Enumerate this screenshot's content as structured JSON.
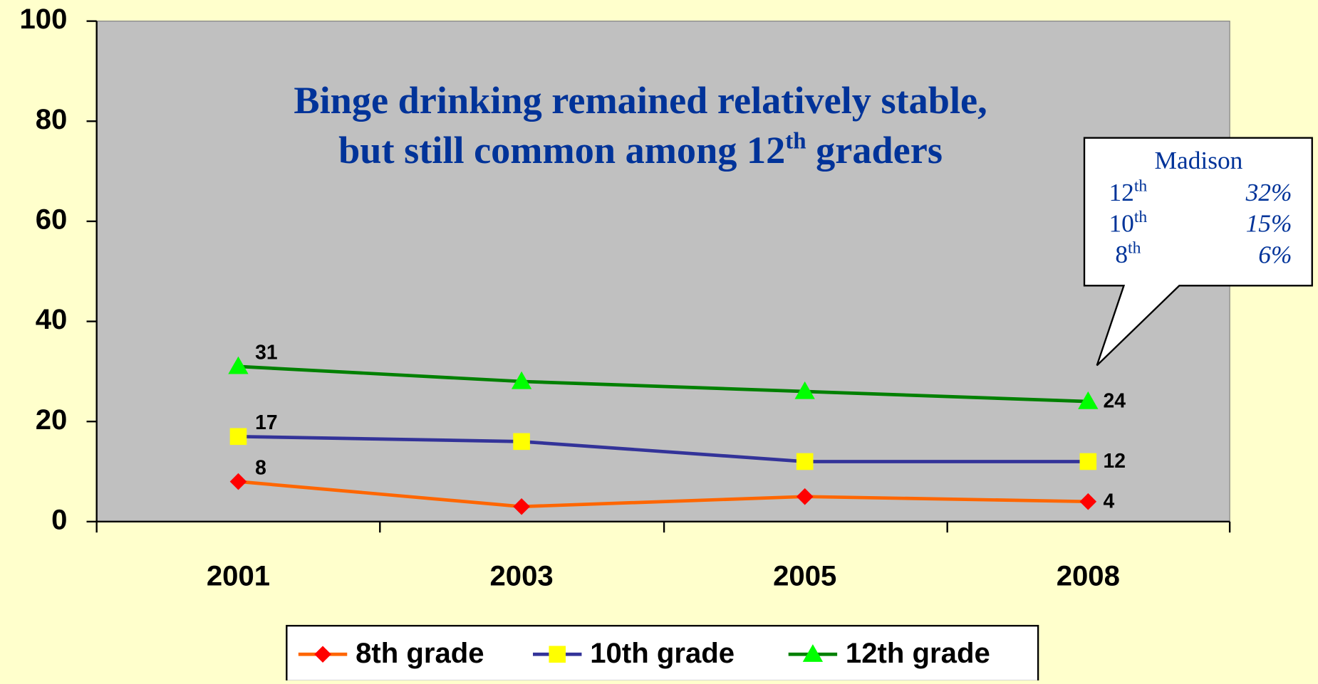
{
  "chart_data": {
    "type": "line",
    "title": {
      "line1": "Binge drinking remained relatively stable,",
      "line2": "but still common among 12",
      "line2_sup": "th",
      "line2_end": " graders"
    },
    "categories": [
      "2001",
      "2003",
      "2005",
      "2008"
    ],
    "series": [
      {
        "name": "8th grade",
        "color": "#ff6600",
        "marker": "diamond",
        "marker_color": "#ff0000",
        "values": [
          8,
          3,
          5,
          4
        ],
        "value_labels": [
          "8",
          null,
          null,
          "4"
        ]
      },
      {
        "name": "10th grade",
        "color": "#333399",
        "marker": "square",
        "marker_color": "#ffff00",
        "values": [
          17,
          16,
          12,
          12
        ],
        "value_labels": [
          "17",
          null,
          null,
          "12"
        ]
      },
      {
        "name": "12th grade",
        "color": "#008000",
        "marker": "triangle",
        "marker_color": "#00ff00",
        "values": [
          31,
          28,
          26,
          24
        ],
        "value_labels": [
          "31",
          null,
          null,
          "24"
        ]
      }
    ],
    "ylim": [
      0,
      100
    ],
    "yticks": [
      0,
      20,
      40,
      60,
      80,
      100
    ],
    "grid": false,
    "callout": {
      "title": "Madison",
      "rows": [
        {
          "grade": "12",
          "sup": "th",
          "value": "32%"
        },
        {
          "grade": "10",
          "sup": "th",
          "value": "15%"
        },
        {
          "grade": "8",
          "sup": "th",
          "value": "6%"
        }
      ]
    }
  }
}
